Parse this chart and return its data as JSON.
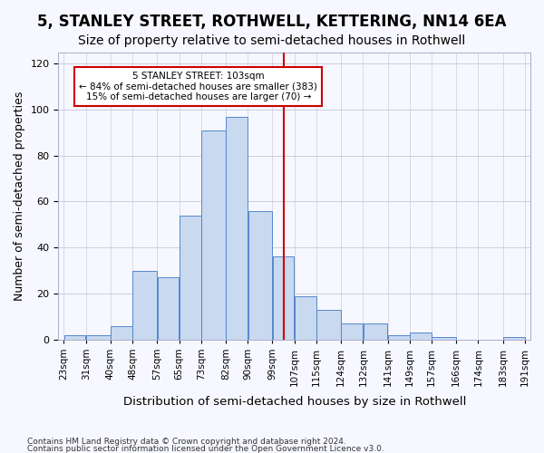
{
  "title": "5, STANLEY STREET, ROTHWELL, KETTERING, NN14 6EA",
  "subtitle": "Size of property relative to semi-detached houses in Rothwell",
  "xlabel": "Distribution of semi-detached houses by size in Rothwell",
  "ylabel": "Number of semi-detached properties",
  "bar_color": "#c8d9f0",
  "bar_edge_color": "#5588cc",
  "ref_line_value": 103,
  "ref_line_color": "#cc0000",
  "annotation_text": "5 STANLEY STREET: 103sqm\n← 84% of semi-detached houses are smaller (383)\n15% of semi-detached houses are larger (70) →",
  "annotation_box_color": "#cc0000",
  "footnote1": "Contains HM Land Registry data © Crown copyright and database right 2024.",
  "footnote2": "Contains public sector information licensed under the Open Government Licence v3.0.",
  "bin_edges": [
    23,
    31,
    40,
    48,
    57,
    65,
    73,
    82,
    90,
    99,
    107,
    115,
    124,
    132,
    141,
    149,
    157,
    166,
    174,
    183,
    191
  ],
  "bin_labels": [
    "23sqm",
    "31sqm",
    "40sqm",
    "48sqm",
    "57sqm",
    "65sqm",
    "73sqm",
    "82sqm",
    "90sqm",
    "99sqm",
    "107sqm",
    "115sqm",
    "124sqm",
    "132sqm",
    "141sqm",
    "149sqm",
    "157sqm",
    "166sqm",
    "174sqm",
    "183sqm",
    "191sqm"
  ],
  "counts": [
    2,
    2,
    6,
    30,
    27,
    54,
    91,
    97,
    56,
    36,
    19,
    13,
    7,
    7,
    2,
    3,
    1,
    0,
    0,
    1
  ],
  "ylim": [
    0,
    125
  ],
  "yticks": [
    0,
    20,
    40,
    60,
    80,
    100,
    120
  ],
  "background_color": "#f7f8ff",
  "grid_color": "#ccccdd",
  "title_fontsize": 12,
  "subtitle_fontsize": 10,
  "axis_label_fontsize": 9,
  "tick_fontsize": 7.5
}
